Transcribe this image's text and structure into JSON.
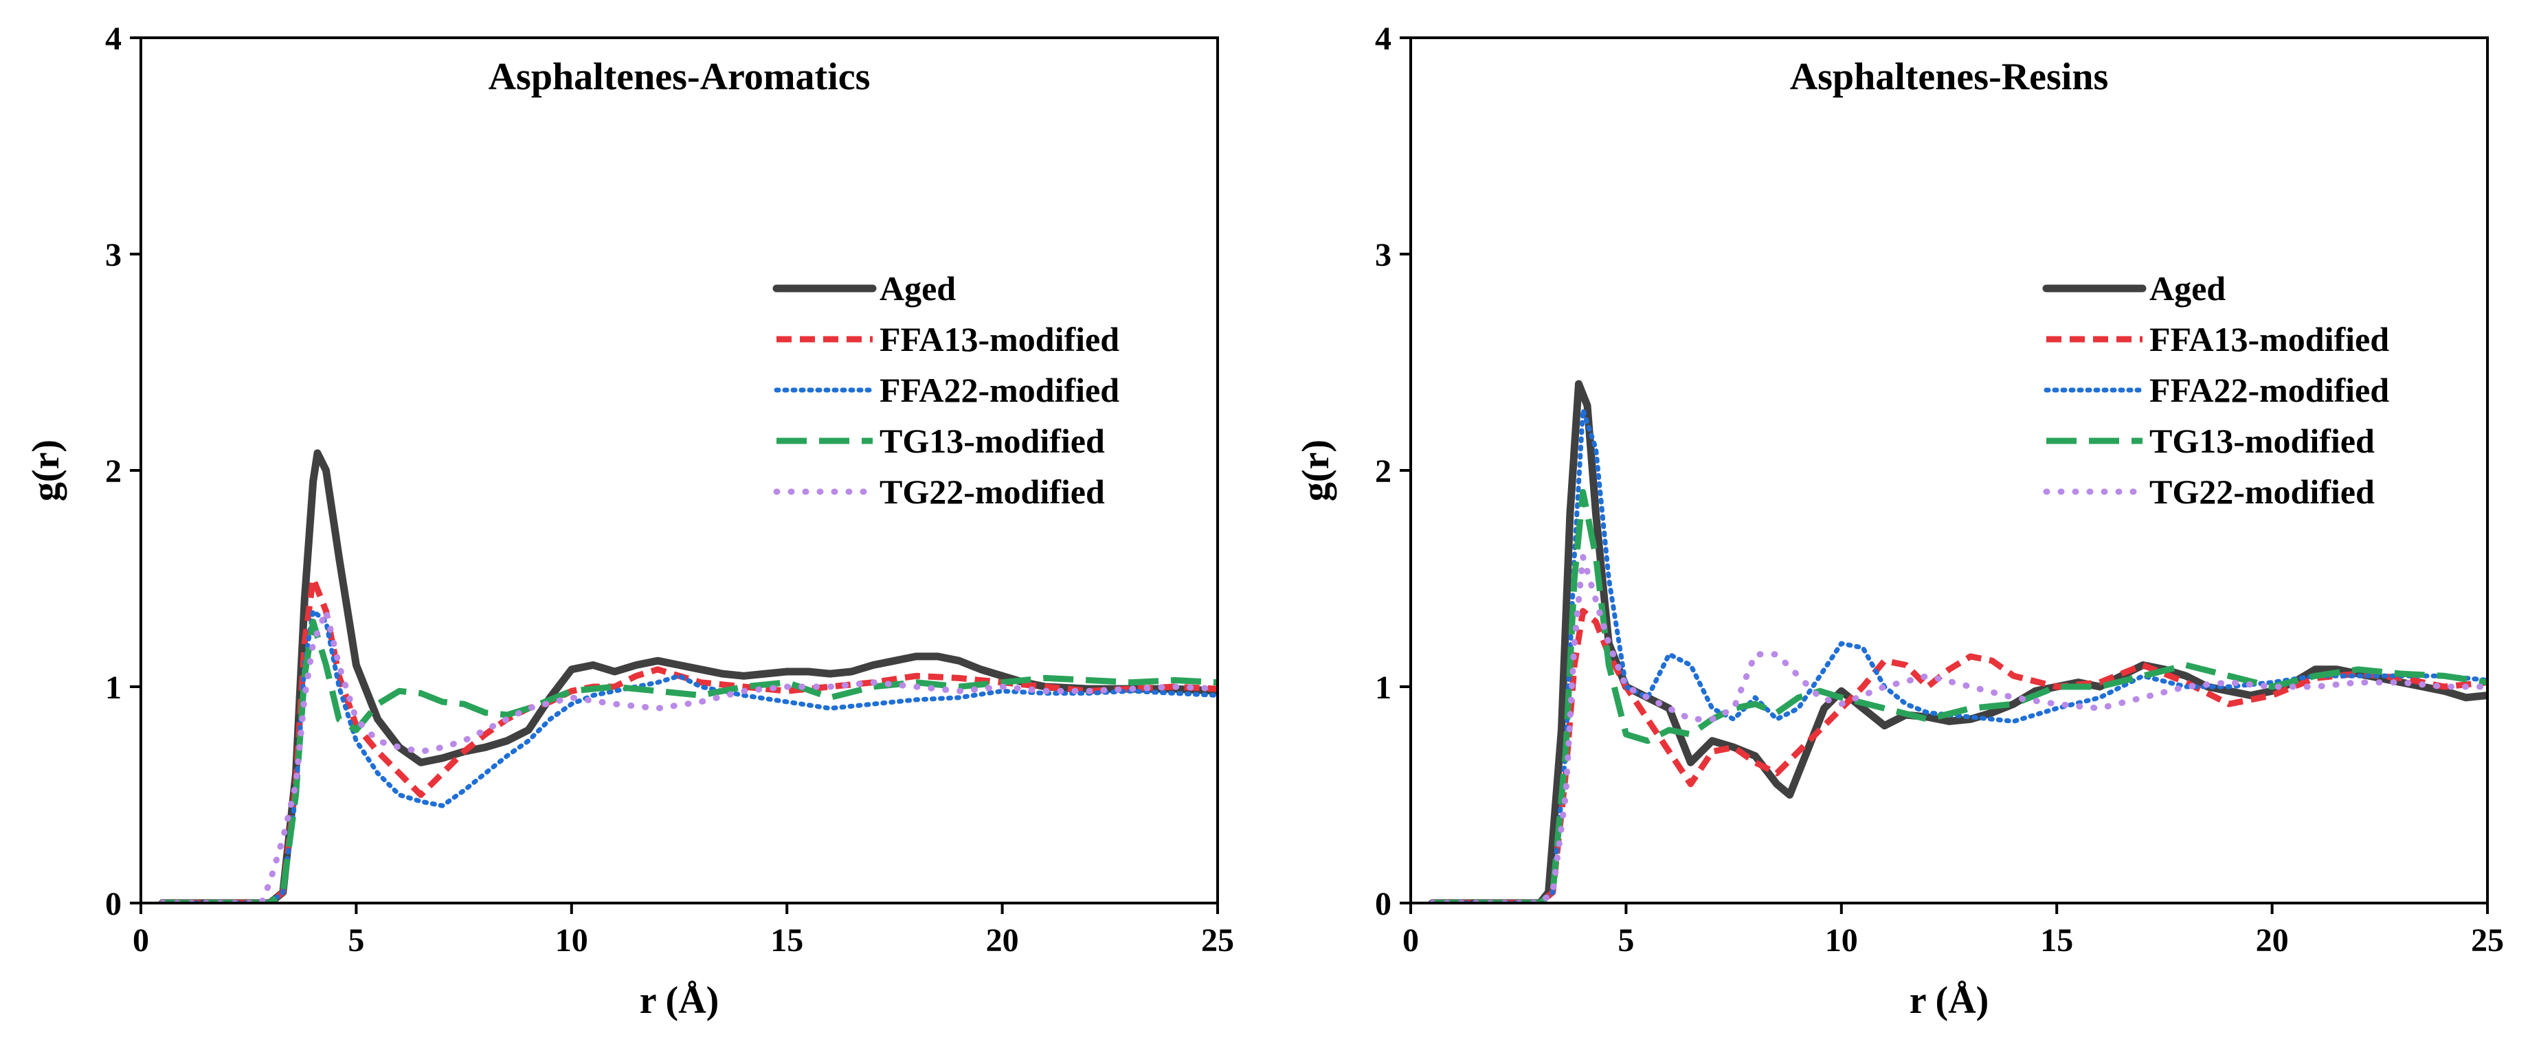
{
  "figure": {
    "colors": {
      "Aged": "#404040",
      "FFA13-modified": "#e8333a",
      "FFA22-modified": "#1f6fd6",
      "TG13-modified": "#2aa35a",
      "TG22-modified": "#b98ae8"
    }
  },
  "chart_data": [
    {
      "type": "line",
      "title": "Asphaltenes-Aromatics",
      "xlabel": "r (Å)",
      "ylabel": "g(r)",
      "xlim": [
        0,
        25
      ],
      "ylim": [
        0,
        4
      ],
      "xticks": [
        0,
        5,
        10,
        15,
        20,
        25
      ],
      "yticks": [
        0,
        1,
        2,
        3,
        4
      ],
      "xtick_labels": [
        "0",
        "5",
        "10",
        "15",
        "20",
        "25"
      ],
      "ytick_labels": [
        "0",
        "1",
        "2",
        "3",
        "4"
      ],
      "legend": [
        "Aged",
        "FFA13-modified",
        "FFA22-modified",
        "TG13-modified",
        "TG22-modified"
      ],
      "series": [
        {
          "name": "Aged",
          "style": "solid",
          "x": [
            0.5,
            3.0,
            3.3,
            3.6,
            3.8,
            4.0,
            4.1,
            4.3,
            4.6,
            5.0,
            5.5,
            6.0,
            6.5,
            7.0,
            7.5,
            8.0,
            8.5,
            9.0,
            9.5,
            10.0,
            10.5,
            11.0,
            11.5,
            12.0,
            12.5,
            13.0,
            13.5,
            14.0,
            14.5,
            15.0,
            15.5,
            16.0,
            16.5,
            17.0,
            17.5,
            18.0,
            18.5,
            19.0,
            19.5,
            20.0,
            20.5,
            21.0,
            22.0,
            23.0,
            24.0,
            25.0
          ],
          "values": [
            0,
            0,
            0.05,
            0.6,
            1.4,
            1.95,
            2.08,
            2.0,
            1.6,
            1.1,
            0.85,
            0.72,
            0.65,
            0.67,
            0.7,
            0.72,
            0.75,
            0.8,
            0.95,
            1.08,
            1.1,
            1.07,
            1.1,
            1.12,
            1.1,
            1.08,
            1.06,
            1.05,
            1.06,
            1.07,
            1.07,
            1.06,
            1.07,
            1.1,
            1.12,
            1.14,
            1.14,
            1.12,
            1.08,
            1.05,
            1.02,
            1.0,
            0.99,
            0.99,
            0.99,
            0.98
          ]
        },
        {
          "name": "FFA13-modified",
          "style": "dashed",
          "x": [
            0.5,
            3.0,
            3.3,
            3.6,
            3.8,
            4.0,
            4.3,
            4.6,
            5.0,
            5.5,
            6.0,
            6.5,
            7.0,
            7.5,
            8.0,
            8.5,
            9.0,
            9.5,
            10.0,
            10.5,
            11.0,
            11.5,
            12.0,
            12.5,
            13.0,
            14.0,
            15.0,
            16.0,
            17.0,
            18.0,
            19.0,
            20.0,
            21.0,
            22.0,
            23.0,
            24.0,
            25.0
          ],
          "values": [
            0,
            0,
            0.05,
            0.55,
            1.2,
            1.5,
            1.35,
            1.05,
            0.82,
            0.7,
            0.6,
            0.5,
            0.6,
            0.7,
            0.78,
            0.85,
            0.9,
            0.93,
            0.98,
            1.0,
            1.0,
            1.05,
            1.08,
            1.05,
            1.02,
            1.0,
            0.98,
            1.0,
            1.02,
            1.05,
            1.04,
            1.02,
            1.0,
            0.98,
            0.99,
            1.0,
            0.99
          ]
        },
        {
          "name": "FFA22-modified",
          "style": "dotted",
          "x": [
            0.5,
            3.0,
            3.3,
            3.6,
            3.8,
            4.0,
            4.3,
            4.6,
            5.0,
            5.5,
            6.0,
            6.5,
            7.0,
            7.5,
            8.0,
            8.5,
            9.0,
            9.5,
            10.0,
            10.5,
            11.0,
            12.0,
            12.5,
            13.0,
            14.0,
            15.0,
            16.0,
            17.0,
            18.0,
            19.0,
            20.0,
            21.0,
            22.0,
            23.0,
            24.0,
            25.0
          ],
          "values": [
            0,
            0,
            0.05,
            0.5,
            1.1,
            1.35,
            1.3,
            1.0,
            0.75,
            0.6,
            0.5,
            0.47,
            0.45,
            0.52,
            0.6,
            0.68,
            0.75,
            0.85,
            0.92,
            0.96,
            0.98,
            1.02,
            1.05,
            1.0,
            0.96,
            0.93,
            0.9,
            0.92,
            0.94,
            0.95,
            0.98,
            0.97,
            0.97,
            0.98,
            0.97,
            0.96
          ]
        },
        {
          "name": "TG13-modified",
          "style": "longdash",
          "x": [
            0.5,
            3.0,
            3.3,
            3.6,
            3.8,
            4.0,
            4.3,
            4.6,
            5.0,
            5.5,
            6.0,
            6.5,
            7.0,
            7.5,
            8.0,
            8.5,
            9.0,
            9.5,
            10.0,
            11.0,
            12.0,
            13.0,
            14.0,
            15.0,
            16.0,
            17.0,
            18.0,
            19.0,
            20.0,
            21.0,
            22.0,
            23.0,
            24.0,
            25.0
          ],
          "values": [
            0,
            0,
            0.05,
            0.5,
            1.05,
            1.3,
            1.1,
            0.85,
            0.8,
            0.92,
            0.98,
            0.97,
            0.93,
            0.92,
            0.88,
            0.87,
            0.9,
            0.94,
            0.98,
            1.0,
            0.98,
            0.96,
            1.0,
            1.02,
            0.95,
            1.0,
            1.02,
            1.0,
            1.02,
            1.04,
            1.03,
            1.02,
            1.03,
            1.02
          ]
        },
        {
          "name": "TG22-modified",
          "style": "dots",
          "x": [
            0.5,
            2.8,
            3.0,
            3.3,
            3.6,
            3.8,
            4.0,
            4.3,
            4.6,
            5.0,
            5.5,
            6.0,
            6.5,
            7.0,
            7.5,
            8.0,
            8.5,
            9.0,
            10.0,
            11.0,
            12.0,
            13.0,
            14.0,
            15.0,
            16.0,
            17.0,
            18.0,
            19.0,
            20.0,
            21.0,
            22.0,
            23.0,
            24.0,
            25.0
          ],
          "values": [
            0,
            0,
            0.1,
            0.3,
            0.55,
            0.95,
            1.2,
            1.35,
            1.1,
            0.85,
            0.75,
            0.72,
            0.7,
            0.72,
            0.75,
            0.8,
            0.85,
            0.9,
            0.95,
            0.92,
            0.9,
            0.93,
            0.98,
            1.0,
            1.0,
            1.02,
            1.0,
            0.98,
            1.0,
            0.98,
            0.98,
            0.99,
            1.0,
            0.99
          ]
        }
      ]
    },
    {
      "type": "line",
      "title": "Asphaltenes-Resins",
      "xlabel": "r (Å)",
      "ylabel": "g(r)",
      "xlim": [
        0,
        25
      ],
      "ylim": [
        0,
        4
      ],
      "xticks": [
        0,
        5,
        10,
        15,
        20,
        25
      ],
      "yticks": [
        0,
        1,
        2,
        3,
        4
      ],
      "xtick_labels": [
        "0",
        "5",
        "10",
        "15",
        "20",
        "25"
      ],
      "ytick_labels": [
        "0",
        "1",
        "2",
        "3",
        "4"
      ],
      "legend": [
        "Aged",
        "FFA13-modified",
        "FFA22-modified",
        "TG13-modified",
        "TG22-modified"
      ],
      "series": [
        {
          "name": "Aged",
          "style": "solid",
          "x": [
            0.5,
            3.0,
            3.2,
            3.5,
            3.7,
            3.9,
            4.1,
            4.3,
            4.6,
            5.0,
            5.5,
            6.0,
            6.5,
            7.0,
            7.5,
            8.0,
            8.5,
            8.8,
            9.2,
            9.6,
            10.0,
            10.5,
            11.0,
            11.5,
            12.0,
            12.5,
            13.0,
            13.5,
            14.0,
            14.5,
            15.0,
            15.5,
            16.0,
            16.5,
            17.0,
            17.5,
            18.0,
            18.5,
            19.0,
            19.5,
            20.0,
            20.5,
            21.0,
            21.5,
            22.0,
            22.5,
            23.0,
            23.5,
            24.0,
            24.5,
            25.0
          ],
          "values": [
            0,
            0,
            0.05,
            0.8,
            1.8,
            2.4,
            2.3,
            1.8,
            1.2,
            1.0,
            0.95,
            0.9,
            0.65,
            0.75,
            0.72,
            0.68,
            0.55,
            0.5,
            0.7,
            0.9,
            0.98,
            0.9,
            0.82,
            0.87,
            0.86,
            0.84,
            0.85,
            0.88,
            0.92,
            0.98,
            1.0,
            1.02,
            1.0,
            1.05,
            1.1,
            1.08,
            1.05,
            1.0,
            0.98,
            0.96,
            0.98,
            1.02,
            1.08,
            1.08,
            1.06,
            1.04,
            1.02,
            1.0,
            0.98,
            0.95,
            0.96
          ]
        },
        {
          "name": "FFA13-modified",
          "style": "dashed",
          "x": [
            0.5,
            3.0,
            3.3,
            3.6,
            3.8,
            4.0,
            4.3,
            4.6,
            5.0,
            5.5,
            6.0,
            6.5,
            7.0,
            7.5,
            8.0,
            8.5,
            9.0,
            9.5,
            10.0,
            10.5,
            11.0,
            11.5,
            12.0,
            12.5,
            13.0,
            13.5,
            14.0,
            15.0,
            16.0,
            17.0,
            18.0,
            19.0,
            20.0,
            21.0,
            22.0,
            23.0,
            24.0,
            25.0
          ],
          "values": [
            0,
            0,
            0.05,
            0.6,
            1.1,
            1.35,
            1.3,
            1.15,
            1.0,
            0.85,
            0.7,
            0.55,
            0.7,
            0.72,
            0.65,
            0.6,
            0.7,
            0.8,
            0.9,
            1.0,
            1.12,
            1.1,
            1.0,
            1.08,
            1.14,
            1.12,
            1.05,
            1.0,
            1.02,
            1.1,
            1.02,
            0.92,
            0.96,
            1.04,
            1.06,
            1.04,
            1.0,
            1.02
          ]
        },
        {
          "name": "FFA22-modified",
          "style": "dotted",
          "x": [
            0.5,
            3.0,
            3.3,
            3.6,
            3.8,
            4.0,
            4.3,
            4.6,
            5.0,
            5.5,
            6.0,
            6.5,
            7.0,
            7.5,
            8.0,
            8.5,
            9.0,
            9.5,
            10.0,
            10.5,
            11.0,
            11.5,
            12.0,
            13.0,
            14.0,
            15.0,
            16.0,
            17.0,
            18.0,
            19.0,
            20.0,
            21.0,
            22.0,
            23.0,
            24.0,
            25.0
          ],
          "values": [
            0,
            0,
            0.05,
            0.7,
            1.6,
            2.28,
            2.1,
            1.5,
            1.0,
            0.95,
            1.15,
            1.1,
            0.9,
            0.85,
            0.95,
            0.85,
            0.9,
            1.05,
            1.2,
            1.18,
            1.0,
            0.92,
            0.88,
            0.86,
            0.84,
            0.9,
            0.95,
            1.05,
            1.0,
            1.0,
            1.02,
            1.05,
            1.05,
            1.05,
            1.05,
            1.03
          ]
        },
        {
          "name": "TG13-modified",
          "style": "longdash",
          "x": [
            0.5,
            3.0,
            3.3,
            3.6,
            3.8,
            4.0,
            4.3,
            4.6,
            5.0,
            5.5,
            6.0,
            6.5,
            7.0,
            7.5,
            8.0,
            8.5,
            9.0,
            9.5,
            10.0,
            11.0,
            12.0,
            13.0,
            14.0,
            15.0,
            16.0,
            17.0,
            18.0,
            19.0,
            20.0,
            21.0,
            22.0,
            23.0,
            24.0,
            25.0
          ],
          "values": [
            0,
            0,
            0.05,
            0.7,
            1.5,
            1.9,
            1.6,
            1.1,
            0.78,
            0.75,
            0.8,
            0.78,
            0.85,
            0.9,
            0.92,
            0.88,
            0.95,
            0.98,
            0.95,
            0.9,
            0.85,
            0.9,
            0.92,
            1.0,
            1.0,
            1.05,
            1.1,
            1.05,
            1.0,
            1.05,
            1.08,
            1.06,
            1.05,
            1.02
          ]
        },
        {
          "name": "TG22-modified",
          "style": "dots",
          "x": [
            0.5,
            3.0,
            3.3,
            3.6,
            3.8,
            4.0,
            4.3,
            4.6,
            5.0,
            5.5,
            6.0,
            6.5,
            7.0,
            7.5,
            8.0,
            8.5,
            9.0,
            9.5,
            10.0,
            11.0,
            12.0,
            13.0,
            14.0,
            15.0,
            16.0,
            17.0,
            18.0,
            19.0,
            20.0,
            21.0,
            22.0,
            23.0,
            24.0,
            25.0
          ],
          "values": [
            0,
            0,
            0.05,
            0.5,
            1.2,
            1.6,
            1.4,
            1.2,
            1.0,
            0.95,
            0.9,
            0.85,
            0.85,
            0.9,
            1.15,
            1.15,
            1.05,
            0.95,
            0.92,
            1.0,
            1.05,
            1.0,
            0.95,
            0.92,
            0.9,
            0.95,
            1.0,
            1.02,
            1.0,
            1.0,
            1.02,
            1.02,
            1.0,
            1.0
          ]
        }
      ]
    }
  ]
}
